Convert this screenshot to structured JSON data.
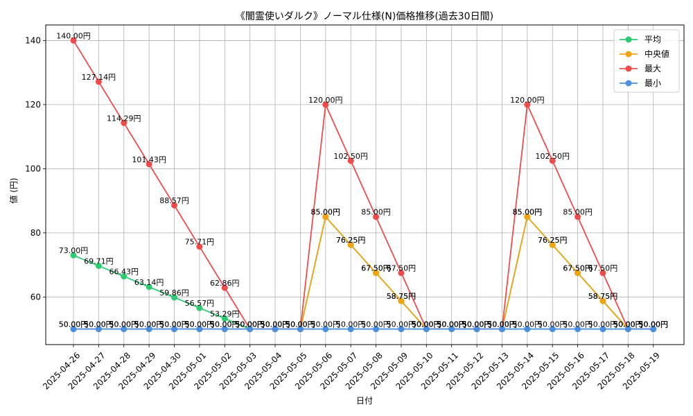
{
  "chart_data": {
    "type": "line",
    "title": "《闇霊使いダルク》ノーマル仕様(N)価格推移(過去30日間)",
    "xlabel": "日付",
    "ylabel": "値 (円)",
    "ylim": [
      45.15,
      144.85
    ],
    "yticks": [
      60,
      80,
      100,
      120,
      140
    ],
    "grid": true,
    "legend_position": "top-right",
    "categories": [
      "2025-04-26",
      "2025-04-27",
      "2025-04-28",
      "2025-04-29",
      "2025-04-30",
      "2025-05-01",
      "2025-05-02",
      "2025-05-03",
      "2025-05-04",
      "2025-05-05",
      "2025-05-06",
      "2025-05-07",
      "2025-05-08",
      "2025-05-09",
      "2025-05-10",
      "2025-05-11",
      "2025-05-12",
      "2025-05-13",
      "2025-05-14",
      "2025-05-15",
      "2025-05-16",
      "2025-05-17",
      "2025-05-18",
      "2025-05-19"
    ],
    "series": [
      {
        "name": "平均",
        "color": "#2ecc71",
        "values": [
          73.0,
          69.71,
          66.43,
          63.14,
          59.86,
          56.57,
          53.29,
          50,
          50,
          50,
          85,
          76.25,
          67.5,
          58.75,
          50,
          50,
          50,
          50,
          85,
          76.25,
          67.5,
          58.75,
          50,
          50
        ]
      },
      {
        "name": "中央値",
        "color": "#f1a40f",
        "values": [
          50,
          50,
          50,
          50,
          50,
          50,
          50,
          50,
          50,
          50,
          85,
          76.25,
          67.5,
          58.75,
          50,
          50,
          50,
          50,
          85,
          76.25,
          67.5,
          58.75,
          50,
          50
        ]
      },
      {
        "name": "最大",
        "color": "#ef4b4b",
        "values": [
          140.0,
          127.14,
          114.29,
          101.43,
          88.57,
          75.71,
          62.86,
          50,
          50,
          50,
          120,
          102.5,
          85,
          67.5,
          50,
          50,
          50,
          50,
          120,
          102.5,
          85,
          67.5,
          50,
          50
        ]
      },
      {
        "name": "最小",
        "color": "#4a90e2",
        "values": [
          50,
          50,
          50,
          50,
          50,
          50,
          50,
          50,
          50,
          50,
          50,
          50,
          50,
          50,
          50,
          50,
          50,
          50,
          50,
          50,
          50,
          50,
          50,
          50
        ]
      }
    ],
    "label_unit": "円"
  }
}
